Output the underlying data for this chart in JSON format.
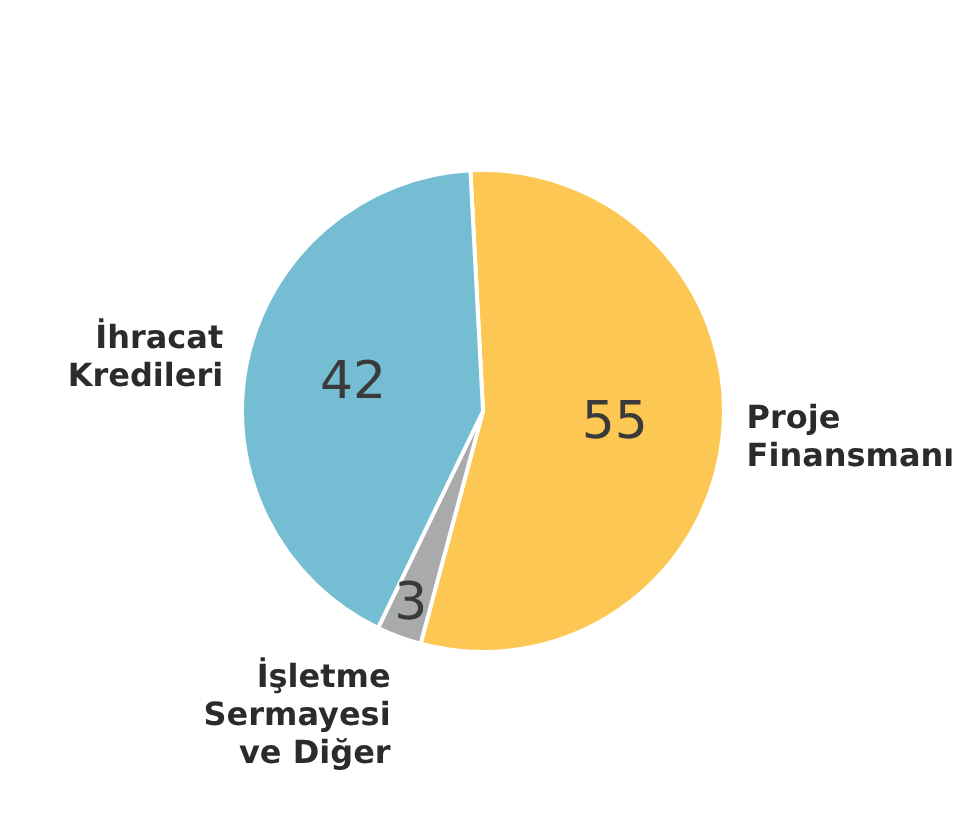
{
  "chart_data": {
    "type": "pie",
    "categories": [
      "Proje Finansmanı",
      "İşletme Sermayesi ve Diğer",
      "İhracat Kredileri"
    ],
    "values": [
      55,
      3,
      42
    ],
    "colors": [
      "#fcc853",
      "#a9aaac",
      "#74bdd2"
    ],
    "data_labels": true,
    "legend": false
  }
}
